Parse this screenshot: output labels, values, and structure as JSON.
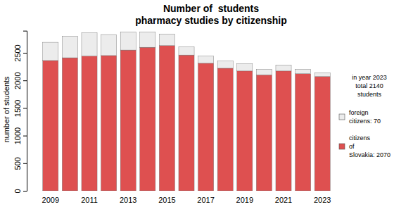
{
  "chart_data": {
    "type": "bar",
    "title": "Number of  students\npharmacy studies by citizenship",
    "y_label": "number of students",
    "categories": [
      "2009",
      null,
      "2011",
      null,
      "2013",
      null,
      "2015",
      null,
      "2017",
      null,
      "2019",
      null,
      "2021",
      null,
      "2023"
    ],
    "series": [
      {
        "name": "citizens\nof\nSlovakia: 2070",
        "color": "#de5050",
        "values": [
          2360,
          2410,
          2440,
          2450,
          2550,
          2600,
          2630,
          2460,
          2310,
          2220,
          2170,
          2100,
          2170,
          2120,
          2070
        ]
      },
      {
        "name": "foreign\ncitizens: 70",
        "color": "#ececec",
        "values": [
          330,
          390,
          420,
          380,
          330,
          280,
          210,
          150,
          130,
          130,
          130,
          100,
          110,
          80,
          70
        ]
      }
    ],
    "stacked": true,
    "ylim": [
      0,
      2900
    ],
    "yticks": [
      0,
      500,
      1000,
      1500,
      2000,
      2500
    ],
    "grid": false,
    "legend": "right",
    "annotations": [
      "in year 2023\ntotal 2140\nstudents"
    ]
  }
}
